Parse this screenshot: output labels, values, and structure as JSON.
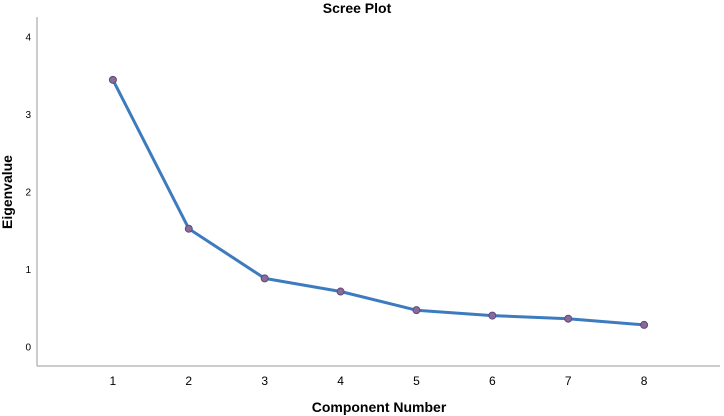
{
  "chart_data": {
    "type": "line",
    "title": "Scree Plot",
    "xlabel": "Component Number",
    "ylabel": "Eigenvalue",
    "x": [
      1,
      2,
      3,
      4,
      5,
      6,
      7,
      8
    ],
    "xlim": [
      0,
      9
    ],
    "ylim": [
      -0.25,
      4.25
    ],
    "yticks": [
      0,
      1,
      2,
      3,
      4
    ],
    "series": [
      {
        "values": [
          3.44,
          1.52,
          0.88,
          0.71,
          0.47,
          0.4,
          0.36,
          0.28
        ]
      }
    ],
    "grid": false,
    "legend": "none",
    "colors": {
      "line": "#3d7bbf",
      "marker_fill": "#8a6a9a",
      "marker_stroke": "#5a4a7a"
    }
  }
}
